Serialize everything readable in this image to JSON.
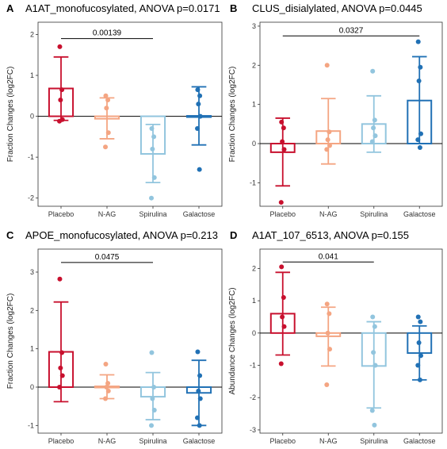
{
  "chart_data": [
    {
      "type": "bar",
      "panel": "A",
      "title": "A1AT_monofucosylated, ANOVA p=0.0171",
      "ylabel": "Fraction Changes (log2FC)",
      "categories": [
        "Placebo",
        "N-AG",
        "Spirulina",
        "Galactose"
      ],
      "colors": [
        "#c8102e",
        "#f4a582",
        "#92c5de",
        "#2171b5"
      ],
      "ylim": [
        -2.2,
        2.3
      ],
      "yticks": [
        -2,
        -1,
        0,
        1,
        2
      ],
      "values": [
        0.68,
        -0.06,
        -0.92,
        0.01
      ],
      "error_low": [
        -0.1,
        -0.55,
        -1.62,
        -0.7
      ],
      "error_high": [
        1.45,
        0.45,
        -0.2,
        0.72
      ],
      "points": [
        [
          1.7,
          0.65,
          0.4,
          -0.08,
          -0.12
        ],
        [
          0.5,
          0.4,
          0.2,
          -0.4,
          -0.75
        ],
        [
          -0.3,
          -0.5,
          -0.8,
          -1.5,
          -2.0
        ],
        [
          0.65,
          0.5,
          0.3,
          0.0,
          -0.3,
          -1.3
        ]
      ],
      "significance": [
        {
          "from": "Placebo",
          "to": "Spirulina",
          "y": 1.9,
          "label": "0.00139"
        }
      ]
    },
    {
      "type": "bar",
      "panel": "B",
      "title": "CLUS_disialylated, ANOVA p=0.0445",
      "ylabel": "Fraction Changes (log2FC)",
      "categories": [
        "Placebo",
        "N-AG",
        "Spirulina",
        "Galactose"
      ],
      "colors": [
        "#c8102e",
        "#f4a582",
        "#92c5de",
        "#2171b5"
      ],
      "ylim": [
        -1.6,
        3.1
      ],
      "yticks": [
        -1,
        0,
        1,
        2,
        3
      ],
      "values": [
        -0.22,
        0.32,
        0.5,
        1.1
      ],
      "error_low": [
        -1.08,
        -0.52,
        -0.22,
        0.0
      ],
      "error_high": [
        0.65,
        1.15,
        1.22,
        2.22
      ],
      "points": [
        [
          0.55,
          0.4,
          0.05,
          -0.15,
          -1.5
        ],
        [
          2.0,
          0.3,
          0.1,
          -0.05,
          -0.15
        ],
        [
          1.85,
          0.6,
          0.4,
          0.2,
          0.05
        ],
        [
          2.6,
          1.95,
          1.6,
          0.25,
          0.1,
          -0.1
        ]
      ],
      "significance": [
        {
          "from": "Placebo",
          "to": "Galactose",
          "y": 2.75,
          "label": "0.0327"
        }
      ]
    },
    {
      "type": "bar",
      "panel": "C",
      "title": "APOE_monofucosylated, ANOVA p=0.213",
      "ylabel": "Fraction Changes (log2FC)",
      "categories": [
        "Placebo",
        "N-AG",
        "Spirulina",
        "Galactose"
      ],
      "colors": [
        "#c8102e",
        "#f4a582",
        "#92c5de",
        "#2171b5"
      ],
      "ylim": [
        -1.2,
        3.6
      ],
      "yticks": [
        -1,
        0,
        1,
        2,
        3
      ],
      "values": [
        0.92,
        0.02,
        -0.25,
        -0.15
      ],
      "error_low": [
        -0.38,
        -0.3,
        -0.85,
        -1.0
      ],
      "error_high": [
        2.22,
        0.32,
        0.38,
        0.7
      ],
      "points": [
        [
          2.82,
          0.9,
          0.5,
          0.3,
          0.0
        ],
        [
          0.6,
          0.1,
          0.0,
          -0.1,
          -0.3
        ],
        [
          0.9,
          0.0,
          -0.3,
          -0.6,
          -1.0
        ],
        [
          0.92,
          0.3,
          -0.1,
          -0.3,
          -0.8,
          -1.0
        ]
      ],
      "significance": [
        {
          "from": "Placebo",
          "to": "Spirulina",
          "y": 3.25,
          "label": "0.0475"
        }
      ]
    },
    {
      "type": "bar",
      "panel": "D",
      "title": "A1AT_107_6513, ANOVA p=0.155",
      "ylabel": "Abundance Changes (log2FC)",
      "categories": [
        "Placebo",
        "N-AG",
        "Spirulina",
        "Galactose"
      ],
      "colors": [
        "#c8102e",
        "#f4a582",
        "#92c5de",
        "#2171b5"
      ],
      "ylim": [
        -3.1,
        2.6
      ],
      "yticks": [
        -3,
        -2,
        -1,
        0,
        1,
        2
      ],
      "values": [
        0.6,
        -0.1,
        -1.02,
        -0.62
      ],
      "error_low": [
        -0.68,
        -1.02,
        -2.32,
        -1.45
      ],
      "error_high": [
        1.88,
        0.8,
        0.35,
        0.22
      ],
      "points": [
        [
          2.05,
          1.1,
          0.5,
          0.2,
          -0.95
        ],
        [
          0.9,
          0.6,
          0.0,
          -0.5,
          -1.6
        ],
        [
          0.5,
          0.2,
          -0.6,
          -1.0,
          -2.4,
          -2.85
        ],
        [
          0.5,
          0.35,
          -0.3,
          -0.7,
          -1.0,
          -1.45
        ]
      ],
      "significance": [
        {
          "from": "Placebo",
          "to": "Spirulina",
          "y": 2.2,
          "label": "0.041"
        }
      ]
    }
  ]
}
